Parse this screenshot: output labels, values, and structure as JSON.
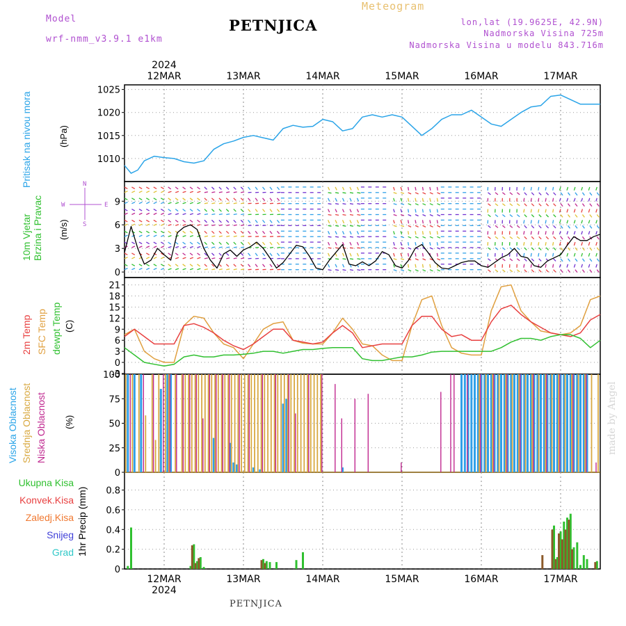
{
  "header": {
    "model_label": "Model",
    "model_name": "wrf-nmm_v3.9.1 e1km",
    "station": "PETNJICA",
    "meteogram": "Meteogram",
    "lonlat": "lon,lat (19.9625E, 42.9N)",
    "altitude": "Nadmorska Visina 725m",
    "model_altitude": "Nadmorska Visina u modelu 843.716m",
    "footer_station": "PETNJICA",
    "watermark": "made by Angel"
  },
  "time_axis": {
    "year": "2024",
    "day_labels": [
      "12MAR",
      "13MAR",
      "14MAR",
      "15MAR",
      "16MAR",
      "17MAR"
    ],
    "start_hour_offset": -12,
    "end_hour_offset": 132
  },
  "colors": {
    "pressure": "#2aa4e8",
    "temp2m": "#e84040",
    "sfc": "#e0a040",
    "dewpt": "#30c030",
    "high_cloud": "#30a0e8",
    "mid_cloud": "#d8a840",
    "low_cloud": "#c02890",
    "total_precip": "#30c030",
    "conv_precip": "#e84040",
    "frozen_precip": "#f07830",
    "snow": "#4040d8",
    "grad": "#30c8c8",
    "wind_axis": "#b050d0"
  },
  "chart_data": [
    {
      "type": "line",
      "panel": "pressure",
      "ylabel": "Pritisak na nivou mora",
      "unit": "(hPa)",
      "yticks": [
        1010,
        1015,
        1020,
        1025
      ],
      "ylim": [
        1005,
        1026
      ],
      "series": [
        {
          "key": "pressure",
          "x": [
            -12,
            -10,
            -8,
            -6,
            -3,
            0,
            3,
            6,
            9,
            12,
            15,
            18,
            21,
            24,
            27,
            30,
            33,
            36,
            39,
            42,
            45,
            48,
            51,
            54,
            57,
            60,
            63,
            66,
            69,
            72,
            75,
            78,
            81,
            84,
            87,
            90,
            93,
            96,
            99,
            102,
            105,
            108,
            111,
            114,
            117,
            120,
            123,
            126,
            129,
            132
          ],
          "y": [
            1008.5,
            1006.8,
            1007.5,
            1009.5,
            1010.5,
            1010.2,
            1010,
            1009.3,
            1009,
            1009.5,
            1012,
            1013.2,
            1013.8,
            1014.6,
            1015,
            1014.5,
            1014,
            1016.5,
            1017.2,
            1016.8,
            1017,
            1018.5,
            1018,
            1016,
            1016.5,
            1019,
            1019.5,
            1019,
            1019.5,
            1019,
            1017,
            1015,
            1016.5,
            1018.5,
            1019.5,
            1019.5,
            1020.5,
            1019,
            1017.5,
            1017,
            1018.5,
            1020,
            1021.2,
            1021.5,
            1023.5,
            1023.8,
            1022.8,
            1021.8,
            1021.8,
            1021.8
          ]
        }
      ]
    },
    {
      "type": "line",
      "panel": "wind",
      "ylabel": "10m Vjetar Brzina i Pravac",
      "unit": "(m/s)",
      "yticks": [
        0,
        3,
        6,
        9
      ],
      "ylim": [
        -0.7,
        11.5
      ],
      "compass": {
        "n": "N",
        "s": "S",
        "w": "W",
        "e": "E"
      },
      "series": [
        {
          "key": "wind_speed",
          "x": [
            -12,
            -10,
            -8,
            -6,
            -4,
            -2,
            0,
            2,
            4,
            6,
            8,
            10,
            12,
            14,
            16,
            18,
            20,
            22,
            24,
            26,
            28,
            30,
            32,
            34,
            36,
            38,
            40,
            42,
            44,
            46,
            48,
            50,
            52,
            54,
            56,
            58,
            60,
            62,
            64,
            66,
            68,
            70,
            72,
            74,
            76,
            78,
            80,
            82,
            84,
            86,
            88,
            90,
            92,
            94,
            96,
            98,
            100,
            102,
            104,
            106,
            108,
            110,
            112,
            114,
            116,
            118,
            120,
            122,
            124,
            126,
            128,
            130,
            132
          ],
          "y": [
            2.5,
            5.8,
            3,
            1,
            1.5,
            3,
            2.2,
            1.5,
            5,
            5.7,
            6,
            5.4,
            3,
            1.5,
            0.5,
            2.3,
            2.8,
            2,
            2.8,
            3.2,
            3.8,
            3,
            1.8,
            0.5,
            1.2,
            2.3,
            3.4,
            3.2,
            2,
            0.5,
            0.3,
            1.5,
            2.5,
            3.5,
            1,
            0.8,
            1.3,
            0.8,
            1.4,
            2.6,
            2.2,
            0.8,
            0.5,
            1.5,
            3,
            3.5,
            2.4,
            1.2,
            0.5,
            0.4,
            0.8,
            1.2,
            1.4,
            1.4,
            0.8,
            0.6,
            1.2,
            1.8,
            2.2,
            3,
            2,
            1.8,
            0.8,
            0.6,
            1.4,
            1.8,
            2.2,
            3.4,
            4.5,
            4,
            4,
            4.5,
            4.8
          ]
        }
      ]
    },
    {
      "type": "line",
      "panel": "temperature",
      "unit": "(C)",
      "yticks": [
        -3,
        0,
        3,
        6,
        9,
        12,
        15,
        18,
        21
      ],
      "ylim": [
        -3.2,
        23
      ],
      "legend": [
        "2m Temp",
        "SFC Temp",
        "dewpt Temp"
      ],
      "series": [
        {
          "name": "2m Temp",
          "key": "temp2m",
          "x": [
            -12,
            -9,
            -6,
            -3,
            0,
            3,
            6,
            9,
            12,
            15,
            18,
            21,
            24,
            27,
            30,
            33,
            36,
            39,
            42,
            45,
            48,
            51,
            54,
            57,
            60,
            63,
            66,
            69,
            72,
            75,
            78,
            81,
            84,
            87,
            90,
            93,
            96,
            99,
            102,
            105,
            108,
            111,
            114,
            117,
            120,
            123,
            126,
            129,
            132
          ],
          "y": [
            7,
            9,
            7,
            5,
            5,
            5,
            10,
            10.5,
            9.5,
            8,
            6,
            4.5,
            3.5,
            5,
            7,
            9,
            9,
            6,
            5.5,
            5,
            5.5,
            8,
            10,
            8,
            4,
            4.5,
            5,
            5,
            5,
            10,
            12.5,
            12.5,
            9,
            7,
            7.5,
            6,
            6,
            11,
            14.5,
            15.5,
            13,
            11,
            9.5,
            8,
            7.5,
            7,
            8,
            11.5,
            13
          ]
        },
        {
          "name": "SFC Temp",
          "key": "sfc",
          "x": [
            -12,
            -9,
            -6,
            -3,
            0,
            3,
            6,
            9,
            12,
            15,
            18,
            21,
            24,
            27,
            30,
            33,
            36,
            39,
            42,
            45,
            48,
            51,
            54,
            57,
            60,
            63,
            66,
            69,
            72,
            75,
            78,
            81,
            84,
            87,
            90,
            93,
            96,
            99,
            102,
            105,
            108,
            111,
            114,
            117,
            120,
            123,
            126,
            129,
            132
          ],
          "y": [
            7.5,
            9,
            3,
            1,
            0,
            0,
            10,
            12.5,
            12,
            8,
            5,
            4,
            1,
            5,
            9,
            10.5,
            11,
            6,
            5.2,
            5,
            5,
            8,
            12,
            9,
            5,
            4.5,
            2,
            0.5,
            0.5,
            10,
            17,
            18,
            10,
            4,
            2.5,
            2,
            2,
            14,
            20.5,
            21,
            14,
            11,
            8.5,
            8,
            7.5,
            8,
            10,
            17,
            18
          ]
        },
        {
          "name": "dewpt Temp",
          "key": "dewpt",
          "x": [
            -12,
            -9,
            -6,
            -3,
            0,
            3,
            6,
            9,
            12,
            15,
            18,
            21,
            24,
            27,
            30,
            33,
            36,
            39,
            42,
            45,
            48,
            51,
            54,
            57,
            60,
            63,
            66,
            69,
            72,
            75,
            78,
            81,
            84,
            87,
            90,
            93,
            96,
            99,
            102,
            105,
            108,
            111,
            114,
            117,
            120,
            123,
            126,
            129,
            132
          ],
          "y": [
            4,
            2,
            0,
            -0.5,
            -1,
            -0.5,
            1.5,
            2,
            1.5,
            1.5,
            2,
            2,
            2.2,
            2.5,
            3,
            3,
            2.5,
            3,
            3.5,
            3.5,
            3.8,
            4,
            4,
            4,
            1,
            0.5,
            0.5,
            1,
            1.5,
            1.5,
            2,
            2.8,
            3,
            3,
            3,
            3,
            3,
            3,
            4,
            5.5,
            6.5,
            6.5,
            6,
            7,
            7.5,
            7.5,
            6.5,
            4,
            6
          ]
        }
      ]
    },
    {
      "type": "bar",
      "panel": "cloud",
      "unit": "(%)",
      "yticks": [
        0,
        25,
        50,
        75,
        100
      ],
      "ylim": [
        0,
        100
      ],
      "legend": [
        "Visoka Oblacnost",
        "Srednja Oblacnost",
        "Niska Oblacnost"
      ],
      "series": [
        {
          "name": "Visoka Oblacnost",
          "key": "high_cloud",
          "x": [
            -11,
            -9,
            -7,
            -1,
            1,
            2,
            15,
            20,
            21,
            22,
            27,
            29,
            36,
            37,
            54,
            90,
            91,
            92,
            93,
            94,
            95,
            96,
            97,
            98,
            99,
            100,
            101,
            102,
            103,
            104,
            105,
            106,
            107,
            108,
            109,
            110,
            111,
            112,
            113,
            114,
            115,
            116,
            117,
            118,
            119,
            120,
            121,
            122,
            123,
            124,
            125,
            126,
            127,
            128
          ],
          "y": [
            100,
            100,
            100,
            85,
            100,
            100,
            35,
            30,
            10,
            8,
            5,
            3,
            70,
            75,
            5,
            100,
            100,
            100,
            100,
            100,
            100,
            100,
            100,
            100,
            100,
            100,
            100,
            100,
            100,
            100,
            100,
            100,
            100,
            100,
            100,
            100,
            100,
            100,
            100,
            100,
            100,
            100,
            100,
            100,
            100,
            100,
            100,
            100,
            100,
            100,
            100,
            100,
            100,
            100
          ]
        },
        {
          "name": "Srednja Oblacnost",
          "key": "mid_cloud",
          "x": [
            -12,
            -10,
            -8,
            -6,
            -4,
            -3,
            -2,
            0,
            1,
            3,
            5,
            6,
            7,
            8,
            9,
            10,
            11,
            12,
            13,
            14,
            15,
            16,
            17,
            18,
            19,
            20,
            21,
            22,
            23,
            24,
            25,
            26,
            27,
            28,
            29,
            30,
            31,
            32,
            33,
            34,
            35,
            36,
            37,
            38,
            39,
            40,
            41,
            42,
            43,
            44,
            45,
            46,
            47,
            95,
            97,
            99,
            101,
            103,
            105,
            107,
            109,
            111,
            113,
            115,
            117,
            119,
            121,
            123,
            125,
            127,
            129,
            131
          ],
          "y": [
            100,
            100,
            100,
            58,
            100,
            33,
            100,
            100,
            100,
            100,
            100,
            100,
            100,
            100,
            100,
            100,
            100,
            100,
            100,
            100,
            100,
            100,
            100,
            100,
            100,
            100,
            100,
            100,
            100,
            100,
            100,
            100,
            100,
            100,
            100,
            100,
            100,
            100,
            100,
            100,
            100,
            100,
            100,
            100,
            100,
            100,
            100,
            100,
            100,
            100,
            100,
            100,
            100,
            100,
            100,
            100,
            100,
            100,
            100,
            100,
            100,
            100,
            100,
            100,
            100,
            100,
            100,
            100,
            100,
            100,
            100,
            100
          ]
        },
        {
          "name": "Niska Oblacnost",
          "key": "low_cloud",
          "x": [
            -10,
            -6,
            -3,
            0,
            2,
            4,
            6,
            8,
            10,
            12,
            14,
            16,
            18,
            20,
            23,
            26,
            30,
            34,
            38,
            40,
            44,
            48,
            52,
            54,
            58,
            62,
            72,
            84,
            87,
            88,
            92,
            96,
            100,
            104,
            108,
            112,
            116,
            120,
            124,
            128,
            131
          ],
          "y": [
            100,
            100,
            100,
            100,
            100,
            100,
            100,
            100,
            100,
            55,
            100,
            100,
            100,
            100,
            100,
            100,
            100,
            100,
            100,
            60,
            100,
            100,
            90,
            55,
            75,
            80,
            10,
            82,
            100,
            100,
            100,
            100,
            100,
            100,
            100,
            100,
            100,
            100,
            100,
            100,
            10
          ]
        }
      ]
    },
    {
      "type": "bar",
      "panel": "precip",
      "ylabel": "1hr Precip",
      "unit": "(mm)",
      "yticks": [
        0,
        0.2,
        0.4,
        0.6,
        0.8
      ],
      "ylim": [
        0,
        0.98
      ],
      "legend": [
        "Ukupna Kisa",
        "Konvek.Kisa",
        "Zaledj.Kisa",
        "Snijeg",
        "Grad"
      ],
      "series": [
        {
          "name": "Ukupna Kisa",
          "key": "total_precip",
          "x": [
            -11,
            -10,
            8,
            9,
            10,
            11,
            12,
            30,
            31,
            32,
            34,
            40,
            42,
            118,
            119,
            120,
            121,
            122,
            123,
            124,
            125,
            126,
            127,
            128,
            131
          ],
          "y": [
            0.03,
            0.42,
            0.03,
            0.25,
            0.08,
            0.12,
            0.02,
            0.1,
            0.08,
            0.07,
            0.07,
            0.09,
            0.17,
            0.44,
            0.12,
            0.38,
            0.48,
            0.52,
            0.56,
            0.22,
            0.27,
            0.04,
            0.14,
            0.1,
            0.08
          ]
        },
        {
          "name": "Konvek.Kisa",
          "key": "conv_precip",
          "x": [
            9,
            10,
            11,
            30,
            31,
            115,
            118,
            119,
            120,
            121,
            122,
            123,
            124,
            131
          ],
          "y": [
            0.24,
            0.06,
            0.11,
            0.09,
            0.06,
            0.14,
            0.4,
            0.1,
            0.36,
            0.3,
            0.4,
            0.5,
            0.2,
            0.07
          ]
        }
      ]
    }
  ]
}
